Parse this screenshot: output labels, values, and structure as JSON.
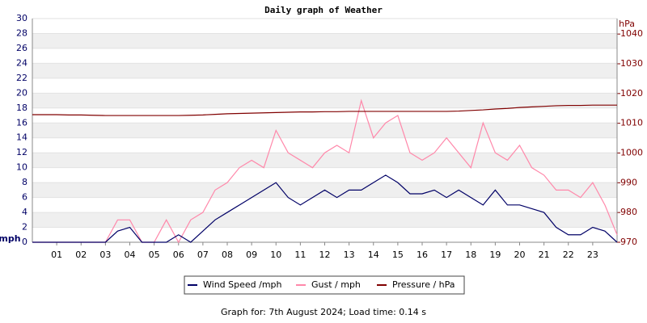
{
  "chart_data": {
    "type": "line",
    "title": "Daily graph of Weather",
    "ylabel": "mph",
    "y2label": "hPa",
    "footer": "Graph for: 7th August 2024; Load time: 0.14 s",
    "x": [
      0,
      0.5,
      1,
      1.5,
      2,
      2.5,
      3,
      3.5,
      4,
      4.5,
      5,
      5.5,
      6,
      6.5,
      7,
      7.5,
      8,
      8.5,
      9,
      9.5,
      10,
      10.5,
      11,
      11.5,
      12,
      12.5,
      13,
      13.5,
      14,
      14.5,
      15,
      15.5,
      16,
      16.5,
      17,
      17.5,
      18,
      18.5,
      19,
      19.5,
      20,
      20.5,
      21,
      21.5,
      22,
      22.5,
      23,
      23.5,
      24
    ],
    "series": [
      {
        "name": "Wind Speed /mph",
        "color": "#000066",
        "values": [
          0,
          0,
          0,
          0,
          0,
          0,
          0,
          1.5,
          2,
          0,
          0,
          0,
          1,
          0,
          1.5,
          3,
          4,
          5,
          6,
          7,
          8,
          6,
          5,
          6,
          7,
          6,
          7,
          7,
          8,
          9,
          8,
          6.5,
          6.5,
          7,
          6,
          7,
          6,
          5,
          7,
          5,
          5,
          4.5,
          4,
          2,
          1,
          1,
          2,
          1.5,
          0
        ]
      },
      {
        "name": "Gust / mph",
        "color": "#ff88aa",
        "values": [
          0,
          0,
          0,
          0,
          0,
          0,
          0,
          3,
          3,
          0,
          0,
          3,
          0,
          3,
          4,
          7,
          8,
          10,
          11,
          10,
          15,
          12,
          11,
          10,
          12,
          13,
          12,
          19,
          14,
          16,
          17,
          12,
          11,
          12,
          14,
          12,
          10,
          16,
          12,
          11,
          13,
          10,
          9,
          7,
          7,
          6,
          8,
          5,
          1
        ]
      },
      {
        "name": "Pressure / hPa",
        "color": "#800000",
        "axis": "y2",
        "values": [
          1012.9,
          1012.9,
          1012.9,
          1012.8,
          1012.8,
          1012.7,
          1012.6,
          1012.6,
          1012.6,
          1012.6,
          1012.6,
          1012.6,
          1012.6,
          1012.7,
          1012.8,
          1013,
          1013.2,
          1013.3,
          1013.4,
          1013.5,
          1013.6,
          1013.7,
          1013.8,
          1013.8,
          1013.9,
          1013.9,
          1014,
          1014,
          1014,
          1014,
          1014,
          1014,
          1014,
          1014,
          1014,
          1014.1,
          1014.3,
          1014.5,
          1014.8,
          1015,
          1015.3,
          1015.5,
          1015.7,
          1015.9,
          1016,
          1016,
          1016.1,
          1016.1,
          1016.1
        ]
      }
    ],
    "xlim": [
      0,
      24
    ],
    "xticks": [
      {
        "value": 1,
        "label": "01"
      },
      {
        "value": 2,
        "label": "02"
      },
      {
        "value": 3,
        "label": "03"
      },
      {
        "value": 4,
        "label": "04"
      },
      {
        "value": 5,
        "label": "05"
      },
      {
        "value": 6,
        "label": "06"
      },
      {
        "value": 7,
        "label": "07"
      },
      {
        "value": 8,
        "label": "08"
      },
      {
        "value": 9,
        "label": "09"
      },
      10,
      11,
      12,
      13,
      14,
      15,
      16,
      17,
      18,
      19,
      20,
      21,
      22,
      23
    ],
    "ylim": [
      0,
      30
    ],
    "yticks": [
      0,
      2,
      4,
      6,
      8,
      10,
      12,
      14,
      16,
      18,
      20,
      22,
      24,
      26,
      28,
      30
    ],
    "y2lim": [
      970,
      1045.2
    ],
    "y2ticks": [
      970,
      980,
      990,
      1000,
      1010,
      1020,
      1030,
      1040
    ],
    "grid": true
  }
}
